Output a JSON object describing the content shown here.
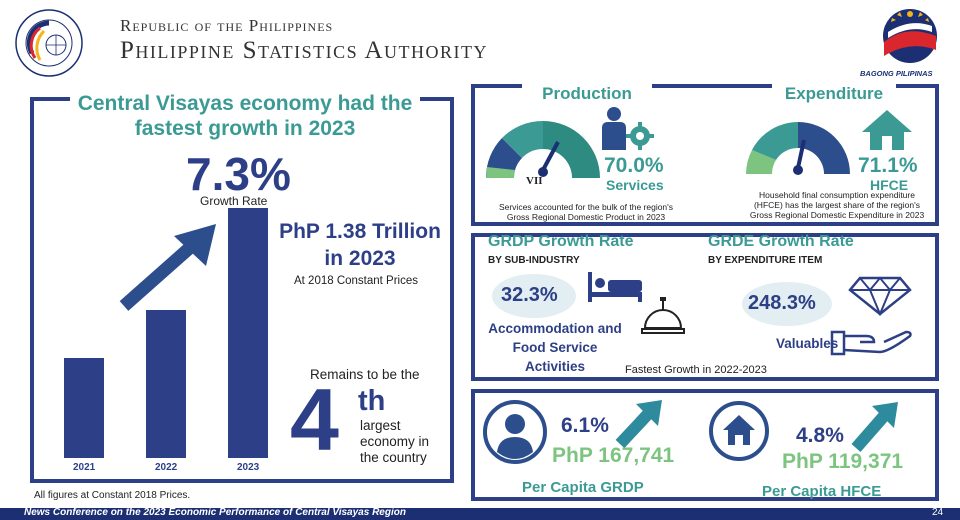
{
  "header": {
    "line1": "Republic of the Philippines",
    "line2": "Philippine Statistics Authority",
    "logo_ring_text": "Philippine Statistics Authority",
    "bagong_pilipinas": "BAGONG PILIPINAS"
  },
  "left": {
    "title": "Central Visayas economy had the fastest growth in 2023",
    "growth_rate": "7.3%",
    "growth_label": "Growth Rate",
    "bars": [
      {
        "year": "2021",
        "relative_height": 0.4
      },
      {
        "year": "2022",
        "relative_height": 0.59
      },
      {
        "year": "2023",
        "relative_height": 1.0
      }
    ],
    "trillion_line1": "PhP 1.38 Trillion",
    "trillion_line2": "in 2023",
    "constant_prices": "At 2018 Constant Prices",
    "remains": "Remains to be the",
    "rank_number": "4",
    "rank_suffix": "th",
    "rank_text_1": "largest",
    "rank_text_2": "economy in",
    "rank_text_3": "the country",
    "footnote": "All figures at Constant 2018 Prices."
  },
  "production": {
    "title": "Production",
    "gauge_label": "VII",
    "pct": "70.0%",
    "sub": "Services",
    "desc_1": "Services accounted for the bulk of the region's",
    "desc_2": "Gross Regional Domestic Product in 2023"
  },
  "expenditure": {
    "title": "Expenditure",
    "pct": "71.1%",
    "sub": "HFCE",
    "desc_1": "Household final consumption expenditure",
    "desc_2": "(HFCE) has the largest share of the region's",
    "desc_3": "Gross Regional Domestic Expenditure in 2023"
  },
  "grdp": {
    "title": "GRDP Growth Rate",
    "sub": "BY SUB-INDUSTRY",
    "value": "32.3%",
    "label_1": "Accommodation and",
    "label_2": "Food Service",
    "label_3": "Activities"
  },
  "grde": {
    "title": "GRDE Growth Rate",
    "sub": "BY EXPENDITURE ITEM",
    "value": "248.3%",
    "label": "Valuables"
  },
  "fastest": "Fastest Growth in 2022-2023",
  "per_capita": {
    "grdp_pct": "6.1%",
    "grdp_amount": "PhP 167,741",
    "grdp_label": "Per Capita GRDP",
    "hfce_pct": "4.8%",
    "hfce_amount": "PhP 119,371",
    "hfce_label": "Per Capita HFCE"
  },
  "footer": {
    "text": "News Conference on the 2023 Economic Performance of Central Visayas Region",
    "page": "24"
  },
  "colors": {
    "navy": "#2d3f86",
    "teal": "#3b9b94",
    "green": "#7cc47f",
    "footer": "#1c2f73"
  }
}
